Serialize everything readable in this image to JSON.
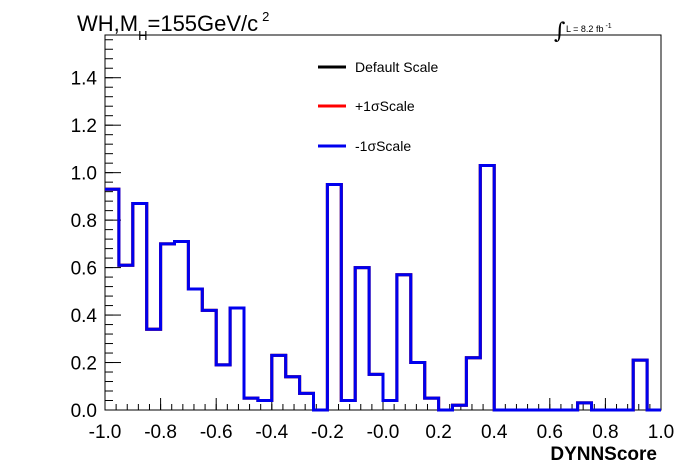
{
  "chart_data": {
    "type": "line",
    "title_main": "WH,M",
    "title_sub": "H",
    "title_rest": "=155GeV/c",
    "title_sup": "2",
    "lumi_label": "L = 8.2 fb",
    "lumi_sup": "-1",
    "xlabel": "DYNNScore",
    "xlim": [
      -1.0,
      1.0
    ],
    "ylim": [
      0.0,
      1.58
    ],
    "x_ticks": [
      "-1.0",
      "-0.8",
      "-0.6",
      "-0.4",
      "-0.2",
      "-0.0",
      "0.2",
      "0.4",
      "0.6",
      "0.8",
      "1.0"
    ],
    "y_ticks": [
      "0.0",
      "0.2",
      "0.4",
      "0.6",
      "0.8",
      "1.0",
      "1.2",
      "1.4"
    ],
    "grid": false,
    "legend_position": "top-center",
    "bin_edges": [
      -1.0,
      -0.95,
      -0.9,
      -0.85,
      -0.8,
      -0.75,
      -0.7,
      -0.65,
      -0.6,
      -0.55,
      -0.5,
      -0.45,
      -0.4,
      -0.35,
      -0.3,
      -0.25,
      -0.2,
      -0.15,
      -0.1,
      -0.05,
      0.0,
      0.05,
      0.1,
      0.15,
      0.2,
      0.25,
      0.3,
      0.35,
      0.4,
      0.45,
      0.5,
      0.55,
      0.6,
      0.65,
      0.7,
      0.75,
      0.8,
      0.85,
      0.9,
      0.95,
      1.0
    ],
    "series": [
      {
        "name": "Default Scale",
        "color": "#000000",
        "values": [
          0.93,
          0.61,
          0.87,
          0.34,
          0.7,
          0.71,
          0.51,
          0.42,
          0.19,
          0.43,
          0.05,
          0.04,
          0.23,
          0.14,
          0.07,
          0.0,
          0.95,
          0.04,
          0.6,
          0.15,
          0.04,
          0.57,
          0.2,
          0.05,
          0.0,
          0.02,
          0.22,
          1.03,
          0.0,
          0.0,
          0.0,
          0.0,
          0.0,
          0.0,
          0.03,
          0.0,
          0.0,
          0.0,
          0.21,
          0.0
        ]
      },
      {
        "name": "+1σScale",
        "color": "#ff0000",
        "values": [
          0.93,
          0.61,
          0.87,
          0.34,
          0.7,
          0.71,
          0.51,
          0.42,
          0.19,
          0.43,
          0.05,
          0.04,
          0.23,
          0.14,
          0.07,
          0.0,
          0.95,
          0.04,
          0.6,
          0.15,
          0.04,
          0.57,
          0.2,
          0.05,
          0.0,
          0.02,
          0.22,
          1.03,
          0.0,
          0.0,
          0.0,
          0.0,
          0.0,
          0.0,
          0.03,
          0.0,
          0.0,
          0.0,
          0.21,
          0.0
        ]
      },
      {
        "name": "-1σScale",
        "color": "#0000ee",
        "values": [
          0.93,
          0.61,
          0.87,
          0.34,
          0.7,
          0.71,
          0.51,
          0.42,
          0.19,
          0.43,
          0.05,
          0.04,
          0.23,
          0.14,
          0.07,
          0.0,
          0.95,
          0.04,
          0.6,
          0.15,
          0.04,
          0.57,
          0.2,
          0.05,
          0.0,
          0.02,
          0.22,
          1.03,
          0.0,
          0.0,
          0.0,
          0.0,
          0.0,
          0.0,
          0.03,
          0.0,
          0.0,
          0.0,
          0.21,
          0.0
        ]
      }
    ]
  }
}
